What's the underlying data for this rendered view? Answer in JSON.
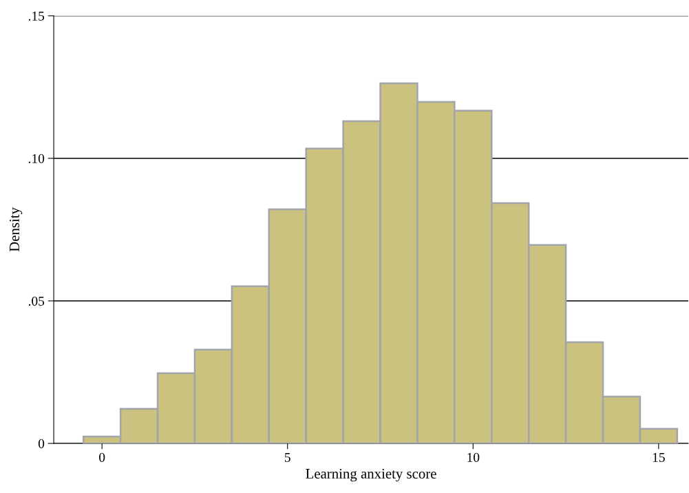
{
  "chart_data": {
    "type": "histogram",
    "xlabel": "Learning anxiety score",
    "ylabel": "Density",
    "bins": [
      -0.5,
      0.5,
      1.5,
      2.5,
      3.5,
      4.5,
      5.5,
      6.5,
      7.5,
      8.5,
      9.5,
      10.5,
      11.5,
      12.5,
      13.5,
      14.5,
      15.5
    ],
    "values": [
      0.0024,
      0.0121,
      0.0246,
      0.0329,
      0.0551,
      0.0821,
      0.1034,
      0.113,
      0.1263,
      0.1198,
      0.1167,
      0.0843,
      0.0696,
      0.0355,
      0.0164,
      0.0051
    ],
    "color": "#cbc27f",
    "xlim": [
      -1.3,
      15.8
    ],
    "xticks": [
      0,
      5,
      10,
      15
    ],
    "ylim": [
      0,
      0.15
    ],
    "yticks": [
      {
        "value": 0,
        "label": "0"
      },
      {
        "value": 0.05,
        "label": ".05"
      },
      {
        "value": 0.1,
        "label": ".10"
      },
      {
        "value": 0.15,
        "label": ".15"
      }
    ],
    "grid": "y"
  }
}
